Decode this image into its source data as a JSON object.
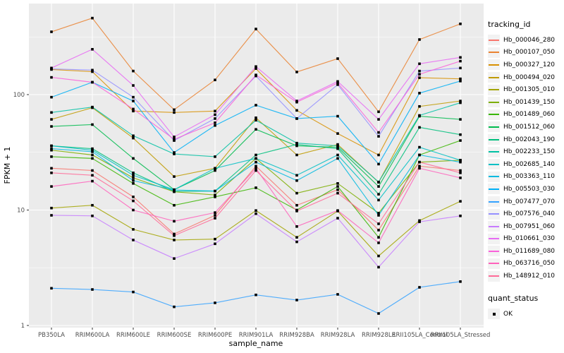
{
  "chart_data": {
    "type": "line",
    "title": "",
    "xlabel": "sample_name",
    "ylabel": "FPKM + 1",
    "y_scale": "log10",
    "ylim": [
      1,
      500
    ],
    "y_ticks": [
      "1",
      "10",
      "100"
    ],
    "y_tick_values": [
      1,
      10,
      100
    ],
    "y_minor_gridline_values": [
      3.162,
      31.623,
      316.228
    ],
    "grid": "on",
    "panel_background": "#EBEBEB",
    "gridline_color": "#FFFFFF",
    "tick_label_color": "#4D4D4D",
    "axis_title_color": "#000000",
    "point_shape": "filled-square",
    "point_color": "#000000",
    "categories": [
      "PB350LA",
      "RRIM600LA",
      "RRIM600LE",
      "RRIM600SE",
      "RRIM600PE",
      "RRIM901LA",
      "RRIM928BA",
      "RRIM928LA",
      "RRIM928LE",
      "RRII105LA_Control",
      "RRII105LA_Stressed"
    ],
    "legend": {
      "title": "tracking_id",
      "position": "right"
    },
    "quant_status": {
      "title": "quant_status",
      "items": [
        {
          "label": "OK",
          "shape": "filled-square",
          "color": "#000000"
        }
      ]
    },
    "series": [
      {
        "name": "Hb_000046_280",
        "color": "#F8766D",
        "quant_status": "OK",
        "values": [
          23,
          22,
          13,
          6.2,
          9.0,
          24,
          11,
          15,
          6.7,
          24,
          22
        ]
      },
      {
        "name": "Hb_000107_050",
        "color": "#EA8331",
        "quant_status": "OK",
        "values": [
          350,
          460,
          160,
          74,
          134,
          370,
          157,
          205,
          71,
          300,
          410
        ]
      },
      {
        "name": "Hb_000327_120",
        "color": "#D89000",
        "quant_status": "OK",
        "values": [
          165,
          158,
          72,
          70,
          72,
          168,
          73,
          46,
          30,
          140,
          137
        ]
      },
      {
        "name": "Hb_000494_020",
        "color": "#C09B00",
        "quant_status": "OK",
        "values": [
          61,
          77,
          42,
          19.5,
          23,
          63,
          30,
          37,
          17.4,
          79,
          88
        ]
      },
      {
        "name": "Hb_001305_010",
        "color": "#A3A500",
        "quant_status": "OK",
        "values": [
          10.4,
          11,
          6.8,
          5.5,
          5.6,
          9.9,
          5.8,
          9.8,
          4.0,
          8.1,
          11.9
        ]
      },
      {
        "name": "Hb_001439_150",
        "color": "#7CAE00",
        "quant_status": "OK",
        "values": [
          33,
          30,
          19,
          14.4,
          13.5,
          28,
          14,
          17,
          9.4,
          26,
          27
        ]
      },
      {
        "name": "Hb_001489_060",
        "color": "#39B600",
        "quant_status": "OK",
        "values": [
          29,
          28,
          17,
          11,
          13,
          15.6,
          10,
          16,
          5.8,
          30,
          40
        ]
      },
      {
        "name": "Hb_001512_060",
        "color": "#00BB4E",
        "quant_status": "OK",
        "values": [
          53,
          55,
          28,
          15,
          22,
          50,
          36,
          35,
          16,
          65,
          61
        ]
      },
      {
        "name": "Hb_002043_190",
        "color": "#00BF7D",
        "quant_status": "OK",
        "values": [
          36,
          34,
          21,
          14.5,
          14.6,
          30,
          37,
          34,
          13.7,
          52,
          45
        ]
      },
      {
        "name": "Hb_002233_150",
        "color": "#00C1A3",
        "quant_status": "OK",
        "values": [
          70,
          78,
          44,
          30.6,
          29,
          60,
          38,
          36,
          17.5,
          66,
          85
        ]
      },
      {
        "name": "Hb_002685_140",
        "color": "#00BFC4",
        "quant_status": "OK",
        "values": [
          36,
          33,
          20,
          15,
          23,
          28,
          20,
          30,
          12.2,
          35,
          27
        ]
      },
      {
        "name": "Hb_003363_110",
        "color": "#00BAE0",
        "quant_status": "OK",
        "values": [
          34,
          32,
          18,
          14.9,
          14.6,
          26,
          18,
          28,
          9.0,
          30,
          26
        ]
      },
      {
        "name": "Hb_005503_030",
        "color": "#00B0F6",
        "quant_status": "OK",
        "values": [
          95,
          128,
          88,
          31.5,
          54,
          81,
          62,
          65,
          25,
          103,
          131
        ]
      },
      {
        "name": "Hb_007477_070",
        "color": "#35A2FF",
        "quant_status": "OK",
        "values": [
          2.1,
          2.05,
          1.95,
          1.45,
          1.57,
          1.84,
          1.66,
          1.86,
          1.27,
          2.14,
          2.4
        ]
      },
      {
        "name": "Hb_007576_040",
        "color": "#9590FF",
        "quant_status": "OK",
        "values": [
          167,
          163,
          95,
          40,
          62,
          145,
          62,
          122,
          43.5,
          160,
          170
        ]
      },
      {
        "name": "Hb_007951_060",
        "color": "#C77CFF",
        "quant_status": "OK",
        "values": [
          9.0,
          8.9,
          5.5,
          3.8,
          5.1,
          9.3,
          5.3,
          8.5,
          3.2,
          7.9,
          8.9
        ]
      },
      {
        "name": "Hb_010661_030",
        "color": "#E76BF3",
        "quant_status": "OK",
        "values": [
          170,
          247,
          120,
          43,
          67,
          175,
          88,
          130,
          61,
          185,
          210
        ]
      },
      {
        "name": "Hb_011689_080",
        "color": "#FA62DB",
        "quant_status": "OK",
        "values": [
          141,
          128,
          75,
          41,
          57,
          148,
          86,
          126,
          47,
          150,
          195
        ]
      },
      {
        "name": "Hb_063716_050",
        "color": "#FF62BC",
        "quant_status": "OK",
        "values": [
          16,
          17.8,
          10,
          8.0,
          9.5,
          23,
          7.2,
          9.9,
          5.2,
          23,
          19
        ]
      },
      {
        "name": "Hb_148912_010",
        "color": "#FF6A98",
        "quant_status": "OK",
        "values": [
          21,
          20,
          12,
          6.0,
          8.5,
          22,
          9.8,
          14,
          7.6,
          26,
          21
        ]
      }
    ]
  }
}
